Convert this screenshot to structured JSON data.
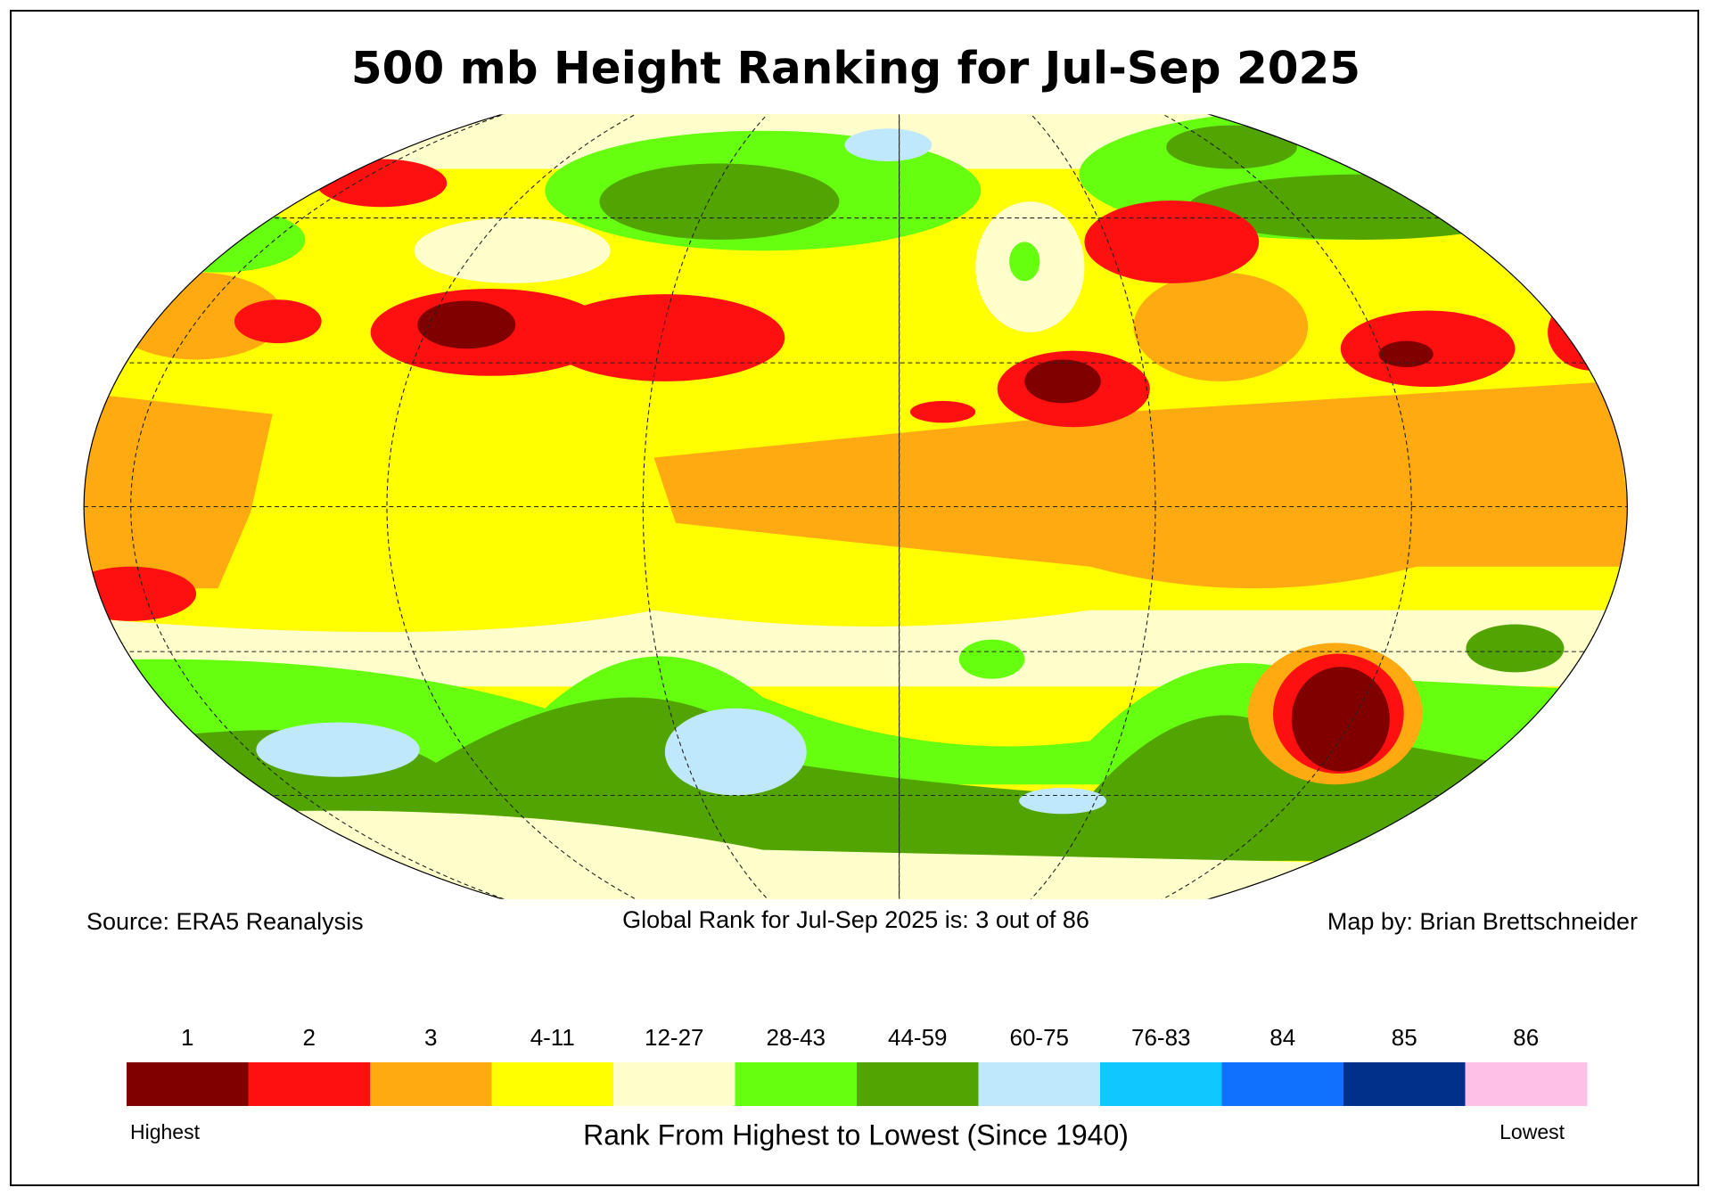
{
  "title": "500 mb Height Ranking for Jul-Sep 2025",
  "source": "Source: ERA5 Reanalysis",
  "global_rank": "Global Rank for Jul-Sep 2025 is: 3 out of 86",
  "credit": "Map by: Brian Brettschneider",
  "legend": {
    "title": "Rank From Highest to Lowest (Since 1940)",
    "start_label": "Highest",
    "end_label": "Lowest",
    "classes": [
      {
        "label": "1",
        "color": "#800000"
      },
      {
        "label": "2",
        "color": "#ff1010"
      },
      {
        "label": "3",
        "color": "#ffaa10"
      },
      {
        "label": "4-11",
        "color": "#ffff00"
      },
      {
        "label": "12-27",
        "color": "#ffffcc"
      },
      {
        "label": "28-43",
        "color": "#66ff10"
      },
      {
        "label": "44-59",
        "color": "#52a500"
      },
      {
        "label": "60-75",
        "color": "#c0e8fc"
      },
      {
        "label": "76-83",
        "color": "#10c8ff"
      },
      {
        "label": "84",
        "color": "#1070ff"
      },
      {
        "label": "85",
        "color": "#00308a"
      },
      {
        "label": "86",
        "color": "#ffc0e8"
      }
    ]
  }
}
